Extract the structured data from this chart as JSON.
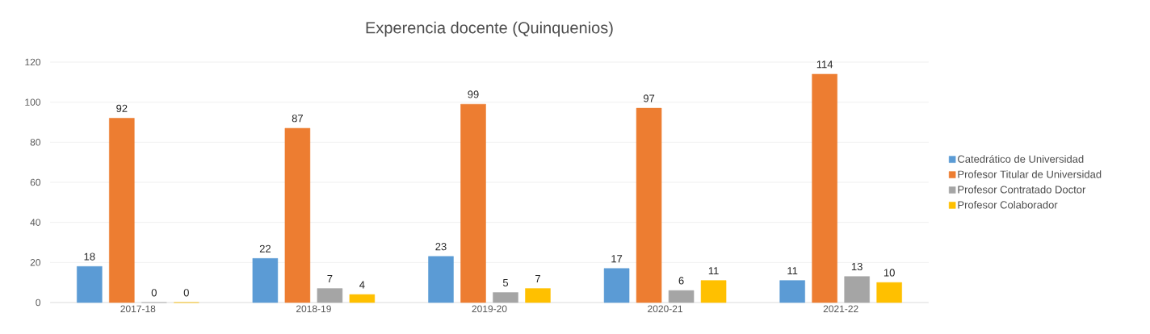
{
  "chart_data": {
    "type": "bar",
    "title": "Experencia docente (Quinquenios)",
    "categories": [
      "2017-18",
      "2018-19",
      "2019-20",
      "2020-21",
      "2021-22"
    ],
    "series": [
      {
        "name": "Catedrático de Universidad",
        "color": "#5b9bd5",
        "values": [
          18,
          22,
          23,
          17,
          11
        ]
      },
      {
        "name": "Profesor Titular de Universidad",
        "color": "#ed7d31",
        "values": [
          92,
          87,
          99,
          97,
          114
        ]
      },
      {
        "name": "Profesor Contratado Doctor",
        "color": "#a5a5a5",
        "values": [
          0,
          7,
          5,
          6,
          13
        ]
      },
      {
        "name": "Profesor Colaborador",
        "color": "#ffc000",
        "values": [
          0,
          4,
          7,
          11,
          10
        ]
      }
    ],
    "ylim": [
      0,
      120
    ],
    "yticks": [
      0,
      20,
      40,
      60,
      80,
      100,
      120
    ],
    "grid": "y",
    "legend": "right",
    "data_labels": true
  }
}
